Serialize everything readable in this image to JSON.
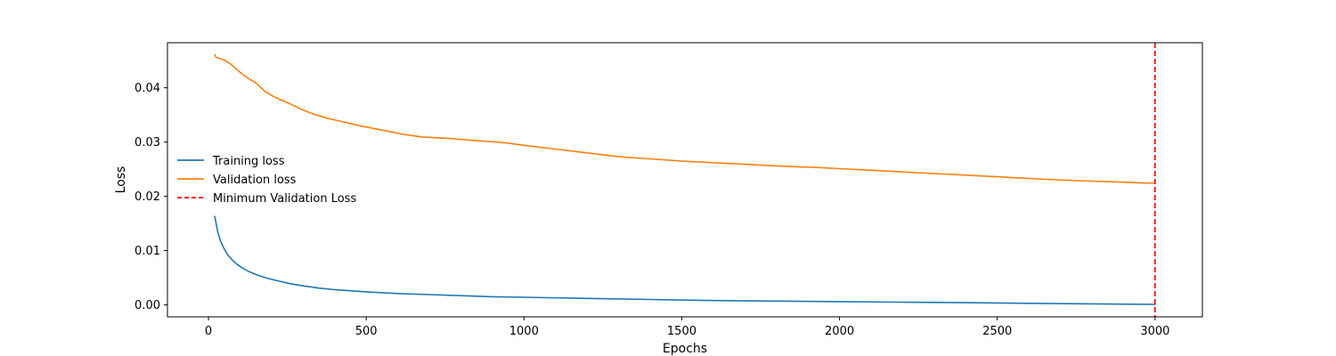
{
  "chart_data": {
    "type": "line",
    "title": "",
    "xlabel": "Epochs",
    "ylabel": "Loss",
    "xlim": [
      -130,
      3150
    ],
    "ylim": [
      -0.0022,
      0.0483
    ],
    "xticks": [
      0,
      500,
      1000,
      1500,
      2000,
      2500,
      3000
    ],
    "xtick_labels": [
      "0",
      "500",
      "1000",
      "1500",
      "2000",
      "2500",
      "3000"
    ],
    "yticks": [
      0.0,
      0.01,
      0.02,
      0.03,
      0.04
    ],
    "ytick_labels": [
      "0.00",
      "0.01",
      "0.02",
      "0.03",
      "0.04"
    ],
    "grid": false,
    "legend_position": "center-left",
    "series": [
      {
        "name": "Training loss",
        "color": "#1f77b4",
        "x": [
          20,
          30,
          40,
          50,
          60,
          75,
          90,
          110,
          130,
          150,
          175,
          200,
          230,
          260,
          300,
          350,
          400,
          450,
          500,
          600,
          700,
          800,
          900,
          1000,
          1200,
          1400,
          1600,
          1800,
          2000,
          2200,
          2400,
          2600,
          2800,
          3000
        ],
        "y": [
          0.0163,
          0.0133,
          0.0115,
          0.0103,
          0.0093,
          0.0083,
          0.0075,
          0.0067,
          0.0061,
          0.0056,
          0.0051,
          0.0047,
          0.0043,
          0.0039,
          0.0035,
          0.0031,
          0.0028,
          0.0026,
          0.0024,
          0.0021,
          0.0019,
          0.0017,
          0.0015,
          0.0014,
          0.0012,
          0.001,
          0.0008,
          0.0007,
          0.0006,
          0.0005,
          0.0004,
          0.0003,
          0.0002,
          0.0001
        ]
      },
      {
        "name": "Validation loss",
        "color": "#ff7f0e",
        "x": [
          20,
          25,
          35,
          50,
          65,
          80,
          95,
          110,
          130,
          150,
          165,
          180,
          200,
          220,
          245,
          270,
          300,
          330,
          370,
          420,
          480,
          550,
          620,
          680,
          720,
          780,
          840,
          890,
          950,
          1000,
          1100,
          1200,
          1300,
          1400,
          1500,
          1600,
          1700,
          1800,
          1880,
          1900,
          2000,
          2100,
          2200,
          2300,
          2400,
          2500,
          2600,
          2700,
          2800,
          2900,
          3000
        ],
        "y": [
          0.0461,
          0.0456,
          0.0454,
          0.0451,
          0.0446,
          0.0439,
          0.0431,
          0.0424,
          0.0416,
          0.0409,
          0.0401,
          0.0393,
          0.0386,
          0.038,
          0.0374,
          0.0367,
          0.0359,
          0.0352,
          0.0345,
          0.0338,
          0.033,
          0.0322,
          0.0314,
          0.0309,
          0.0308,
          0.0306,
          0.0303,
          0.0301,
          0.0298,
          0.0294,
          0.0287,
          0.028,
          0.0273,
          0.0269,
          0.0265,
          0.0262,
          0.0259,
          0.0256,
          0.0254,
          0.0254,
          0.0251,
          0.0248,
          0.0245,
          0.0242,
          0.0239,
          0.0236,
          0.0233,
          0.023,
          0.0228,
          0.0226,
          0.0224
        ]
      }
    ],
    "vlines": [
      {
        "name": "Minimum Validation Loss",
        "x": 3000,
        "color": "#ff0000",
        "style": "dashed"
      }
    ]
  }
}
